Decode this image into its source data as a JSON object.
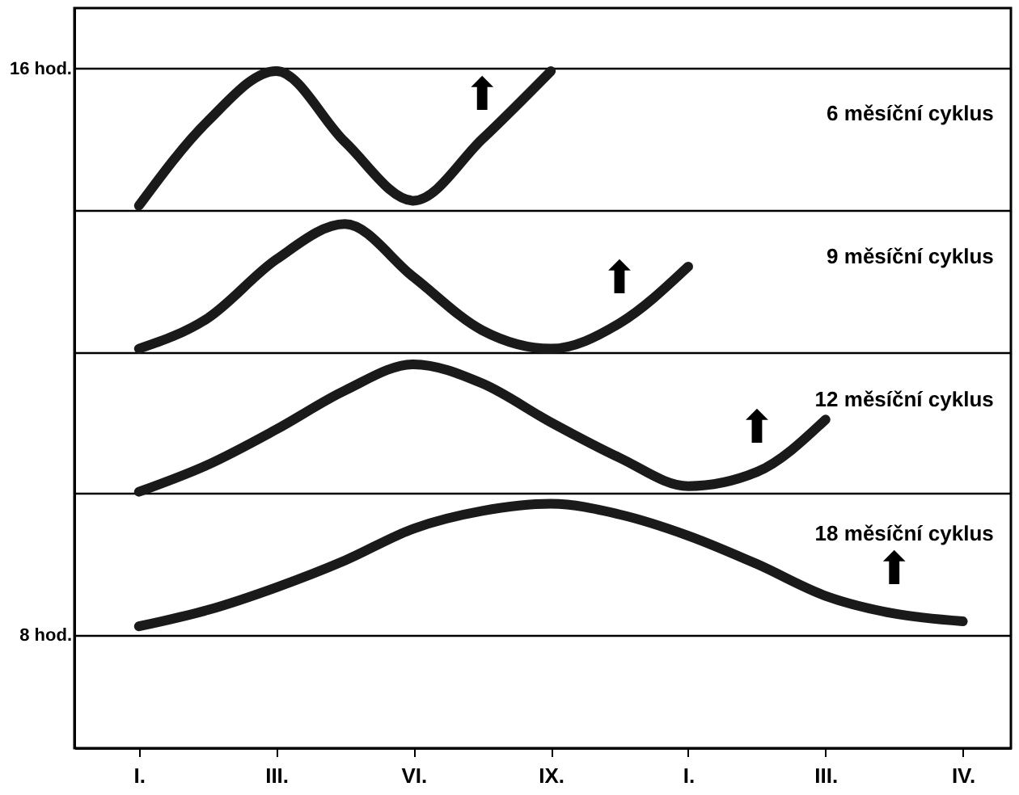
{
  "chart_data": {
    "type": "line",
    "categories": [
      "I.",
      null,
      "III.",
      null,
      "VI.",
      null,
      "IX.",
      null,
      "I.",
      null,
      "III.",
      null,
      "IV."
    ],
    "ylim": [
      6.4,
      16.85
    ],
    "yticks": [
      {
        "value": 8,
        "label": "8 hod."
      },
      {
        "value": 10,
        "label": null
      },
      {
        "value": 12,
        "label": null
      },
      {
        "value": 14,
        "label": null
      },
      {
        "value": 16,
        "label": "16 hod."
      }
    ],
    "grid": "y",
    "marker": "none",
    "line_style": "solid",
    "series": [
      {
        "color": "#1a1a1a",
        "values": [
          14.06,
          15.25,
          15.96,
          14.96,
          14.13,
          15.0,
          15.96,
          null,
          null,
          null,
          null,
          null,
          null
        ]
      },
      {
        "color": "#1a1a1a",
        "values": [
          12.04,
          12.47,
          13.3,
          13.8,
          13.05,
          12.3,
          12.04,
          12.4,
          13.2,
          null,
          null,
          null,
          null
        ]
      },
      {
        "color": "#1a1a1a",
        "values": [
          10.02,
          10.4,
          10.9,
          11.45,
          11.82,
          11.55,
          11.0,
          10.5,
          10.1,
          10.3,
          11.04,
          null,
          null
        ]
      },
      {
        "color": "#1a1a1a",
        "values": [
          8.12,
          8.35,
          8.67,
          9.05,
          9.5,
          9.75,
          9.85,
          9.7,
          9.4,
          9.0,
          8.55,
          8.3,
          8.19
        ]
      }
    ],
    "annotations": [
      "6 měsíční cyklus",
      "9 měsíční cyklus",
      "12 měsíční cyklus",
      "18 měsíční cyklus",
      "⬆",
      "⬆",
      "⬆",
      "⬆"
    ]
  }
}
